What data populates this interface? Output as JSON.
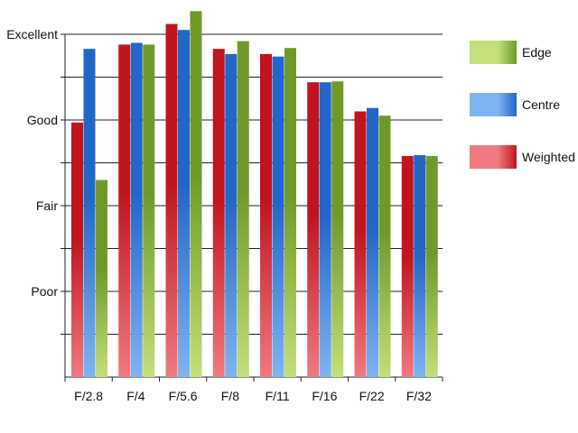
{
  "chart_data": {
    "type": "bar",
    "title": "",
    "xlabel": "",
    "ylabel": "",
    "categories": [
      "F/2.8",
      "F/4",
      "F/5.6",
      "F/8",
      "F/11",
      "F/16",
      "F/22",
      "F/32"
    ],
    "y_ticks": [
      {
        "value": 4,
        "label": "Excellent"
      },
      {
        "value": 3,
        "label": "Good"
      },
      {
        "value": 2,
        "label": "Fair"
      },
      {
        "value": 1,
        "label": "Poor"
      }
    ],
    "ylim": [
      0,
      4
    ],
    "grid": "horizontal",
    "legend_position": "right",
    "series": [
      {
        "name": "Weighted",
        "color": "#c0141f",
        "light": "#f07a80",
        "values": [
          2.97,
          3.88,
          4.12,
          3.83,
          3.77,
          3.44,
          3.1,
          2.58
        ]
      },
      {
        "name": "Centre",
        "color": "#2266c8",
        "light": "#7fb4f2",
        "values": [
          3.83,
          3.9,
          4.05,
          3.77,
          3.74,
          3.44,
          3.14,
          2.59
        ]
      },
      {
        "name": "Edge",
        "color": "#6f9a2a",
        "light": "#c4df7a",
        "values": [
          2.3,
          3.88,
          4.27,
          3.92,
          3.84,
          3.45,
          3.05,
          2.58
        ]
      }
    ],
    "legend_order": [
      "Edge",
      "Centre",
      "Weighted"
    ]
  }
}
